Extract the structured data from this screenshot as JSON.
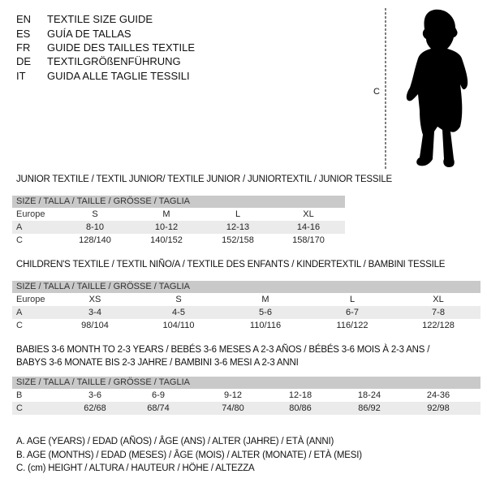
{
  "header": [
    {
      "code": "EN",
      "text": "TEXTILE SIZE GUIDE"
    },
    {
      "code": "ES",
      "text": "GUÍA DE TALLAS"
    },
    {
      "code": "FR",
      "text": "GUIDE DES TAILLES TEXTILE"
    },
    {
      "code": "DE",
      "text": "TEXTILGRÖßENFÜHRUNG"
    },
    {
      "code": "IT",
      "text": "GUIDA ALLE TAGLIE TESSILI"
    }
  ],
  "figure": {
    "measure_label": "C",
    "icon": "baby-silhouette-icon"
  },
  "tables": [
    {
      "title": "JUNIOR TEXTILE / TEXTIL JUNIOR/ TEXTILE JUNIOR / JUNIORTEXTIL / JUNIOR TESSILE",
      "header": "SIZE / TALLA / TAILLE / GRÖSSE / TAGLIA",
      "rows": [
        {
          "label": "Europe",
          "cells": [
            "S",
            "M",
            "L",
            "XL"
          ]
        },
        {
          "label": "A",
          "cells": [
            "8-10",
            "10-12",
            "12-13",
            "14-16"
          ]
        },
        {
          "label": "C",
          "cells": [
            "128/140",
            "140/152",
            "152/158",
            "158/170"
          ]
        }
      ]
    },
    {
      "title": "CHILDREN'S TEXTILE / TEXTIL NIÑO/A / TEXTILE DES ENFANTS / KINDERTEXTIL / BAMBINI TESSILE",
      "header": "SIZE / TALLA / TAILLE / GRÖSSE / TAGLIA",
      "rows": [
        {
          "label": "Europe",
          "cells": [
            "XS",
            "S",
            "M",
            "L",
            "XL"
          ]
        },
        {
          "label": "A",
          "cells": [
            "3-4",
            "4-5",
            "5-6",
            "6-7",
            "7-8"
          ]
        },
        {
          "label": "C",
          "cells": [
            "98/104",
            "104/110",
            "110/116",
            "116/122",
            "122/128"
          ]
        }
      ]
    },
    {
      "title": "BABIES 3-6 MONTH TO 2-3 YEARS / BEBÉS 3-6 MESES A 2-3 AÑOS / BÉBÉS 3-6 MOIS À 2-3 ANS /",
      "title2": "BABYS 3-6 MONATE BIS 2-3 JAHRE / BAMBINI 3-6 MESI A 2-3 ANNI",
      "header": "SIZE / TALLA / TAILLE / GRÖSSE / TAGLIA",
      "rows": [
        {
          "label": "B",
          "cells": [
            "3-6",
            "6-9",
            "9-12",
            "12-18",
            "18-24",
            "24-36"
          ]
        },
        {
          "label": "C",
          "cells": [
            "62/68",
            "68/74",
            "74/80",
            "80/86",
            "86/92",
            "92/98"
          ]
        }
      ]
    }
  ],
  "legend": [
    "A. AGE (YEARS) / EDAD (AÑOS) / ÂGE (ANS) / ALTER (JAHRE) / ETÀ (ANNI)",
    "B. AGE (MONTHS) / EDAD (MESES) / ÂGE (MOIS) / ALTER (MONATE) / ETÀ (MESI)",
    "C. (cm) HEIGHT / ALTURA / HAUTEUR / HÖHE / ALTEZZA"
  ]
}
